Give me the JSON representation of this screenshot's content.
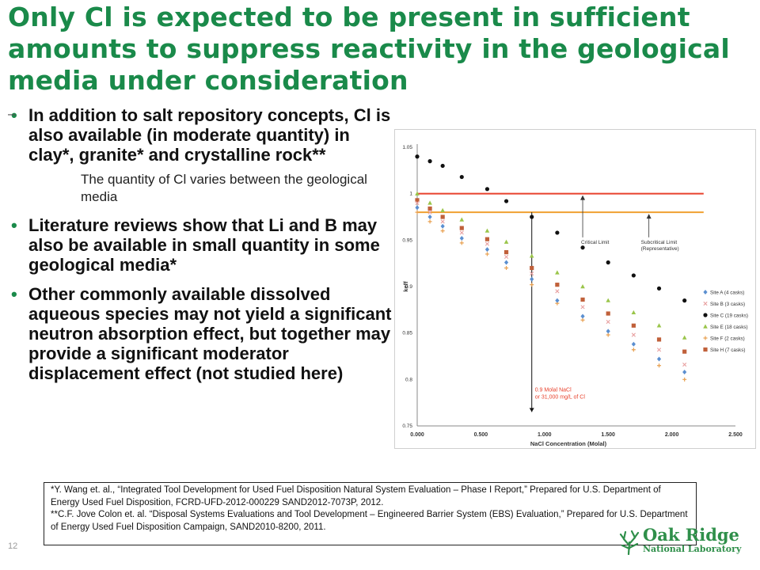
{
  "slide": {
    "title": "Only Cl is expected to be present in sufficient amounts to suppress reactivity in the geological media under consideration",
    "page_number": "12"
  },
  "bullets": [
    {
      "text": "In addition to salt repository concepts, Cl is also available (in moderate quantity) in clay*, granite* and crystalline rock**",
      "sub": "The quantity of Cl varies between the geological media"
    },
    {
      "text": "Literature reviews show that Li and B may also be available in small quantity in some geological media*"
    },
    {
      "text": "Other commonly available dissolved aqueous species may not yield a significant neutron absorption effect, but together may provide a significant moderator displacement effect (not studied here)"
    }
  ],
  "footnote": {
    "line1": "*Y. Wang et. al., “Integrated Tool Development for Used Fuel Disposition Natural System Evaluation – Phase I Report,” Prepared for U.S. Department of Energy Used Fuel Disposition, FCRD-UFD-2012-000229 SAND2012-7073P, 2012.",
    "line2": "**C.F. Jove Colon et. al. “Disposal Systems Evaluations and Tool Development – Engineered Barrier System (EBS) Evaluation,” Prepared for U.S. Department of Energy Used Fuel Disposition Campaign, SAND2010-8200, 2011."
  },
  "logo": {
    "top": "Oak Ridge",
    "bottom": "National Laboratory",
    "color": "#2f8f4a"
  },
  "chart_data": {
    "type": "scatter",
    "xlabel": "NaCl Concentration (Molal)",
    "ylabel": "keff",
    "xlim": [
      0,
      2.5
    ],
    "ylim": [
      0.75,
      1.05
    ],
    "x_ticks": [
      "0.000",
      "0.500",
      "1.000",
      "1.500",
      "2.000",
      "2.500"
    ],
    "y_ticks": [
      "0.75",
      "0.8",
      "0.85",
      "0.9",
      "0.95",
      "1",
      "1.05"
    ],
    "grid": false,
    "legend_position": "right",
    "reference_lines": [
      {
        "label": "Critical Limit",
        "y": 1.0,
        "color": "#e8412c"
      },
      {
        "label": "Subcritical Limit (Representative)",
        "y": 0.98,
        "color": "#f0a030"
      }
    ],
    "annotation": {
      "text": [
        "0.9 Molal NaCl",
        "or 31,000 mg/L of Cl"
      ],
      "x": 0.9,
      "color": "#e8412c"
    },
    "series": [
      {
        "name": "Site A (4 casks)",
        "color": "#5b8fd0",
        "marker": "diamond",
        "x": [
          0,
          0.1,
          0.2,
          0.35,
          0.55,
          0.7,
          0.9,
          1.1,
          1.3,
          1.5,
          1.7,
          1.9,
          2.1
        ],
        "y": [
          0.985,
          0.975,
          0.965,
          0.952,
          0.94,
          0.926,
          0.908,
          0.885,
          0.868,
          0.852,
          0.838,
          0.822,
          0.808
        ]
      },
      {
        "name": "Site B (3 casks)",
        "color": "#e8a0a0",
        "marker": "x",
        "x": [
          0,
          0.1,
          0.2,
          0.35,
          0.55,
          0.7,
          0.9,
          1.1,
          1.3,
          1.5,
          1.7,
          1.9,
          2.1
        ],
        "y": [
          0.99,
          0.98,
          0.97,
          0.958,
          0.946,
          0.932,
          0.914,
          0.895,
          0.878,
          0.862,
          0.848,
          0.832,
          0.816
        ]
      },
      {
        "name": "Site C (19 casks)",
        "color": "#111111",
        "marker": "circle",
        "x": [
          0,
          0.1,
          0.2,
          0.35,
          0.55,
          0.7,
          0.9,
          1.1,
          1.3,
          1.5,
          1.7,
          1.9,
          2.1
        ],
        "y": [
          1.04,
          1.035,
          1.03,
          1.018,
          1.005,
          0.992,
          0.975,
          0.958,
          0.942,
          0.926,
          0.912,
          0.898,
          0.885
        ]
      },
      {
        "name": "Site E (18 casks)",
        "color": "#9ac54a",
        "marker": "triangle",
        "x": [
          0,
          0.1,
          0.2,
          0.35,
          0.55,
          0.7,
          0.9,
          1.1,
          1.3,
          1.5,
          1.7,
          1.9,
          2.1
        ],
        "y": [
          1.0,
          0.99,
          0.982,
          0.972,
          0.96,
          0.948,
          0.933,
          0.915,
          0.9,
          0.885,
          0.872,
          0.858,
          0.845
        ]
      },
      {
        "name": "Site F (2 casks)",
        "color": "#e8a050",
        "marker": "plus",
        "x": [
          0,
          0.1,
          0.2,
          0.35,
          0.55,
          0.7,
          0.9,
          1.1,
          1.3,
          1.5,
          1.7,
          1.9,
          2.1
        ],
        "y": [
          0.98,
          0.97,
          0.96,
          0.947,
          0.935,
          0.92,
          0.902,
          0.882,
          0.864,
          0.848,
          0.832,
          0.815,
          0.8
        ]
      },
      {
        "name": "Site H (7 casks)",
        "color": "#c0603a",
        "marker": "square",
        "x": [
          0,
          0.1,
          0.2,
          0.35,
          0.55,
          0.7,
          0.9,
          1.1,
          1.3,
          1.5,
          1.7,
          1.9,
          2.1
        ],
        "y": [
          0.993,
          0.984,
          0.975,
          0.963,
          0.951,
          0.937,
          0.92,
          0.902,
          0.886,
          0.871,
          0.858,
          0.843,
          0.83
        ]
      }
    ]
  }
}
